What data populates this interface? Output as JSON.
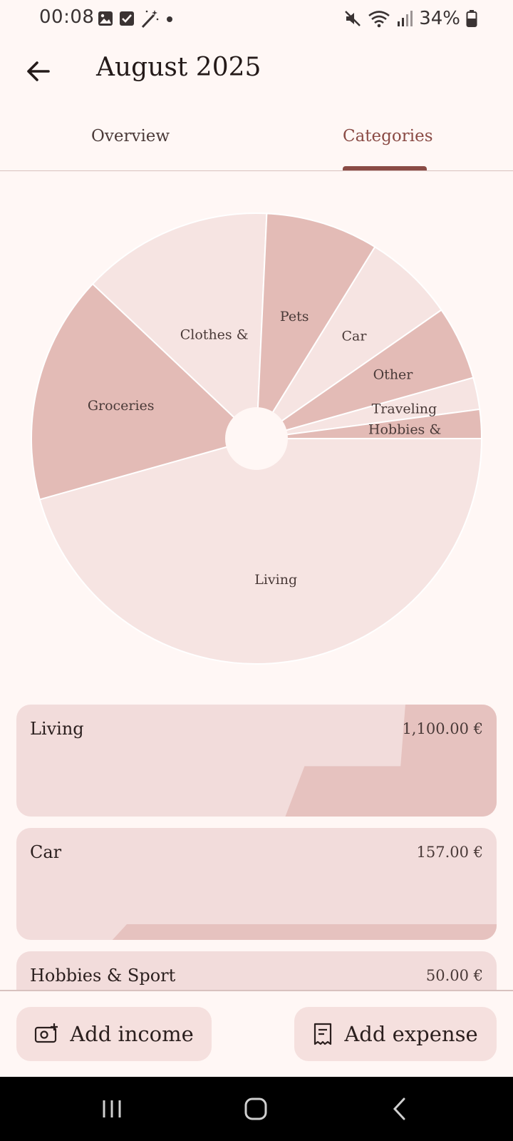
{
  "status_bar": {
    "time": "00:08",
    "battery": "34%",
    "icons_left": [
      "image-icon",
      "check-square-icon",
      "magic-wand-icon",
      "dot-icon"
    ],
    "icons_right": [
      "mute-icon",
      "wifi-icon",
      "signal-icon",
      "battery-icon"
    ]
  },
  "header": {
    "title": "August 2025",
    "back_icon": "arrow-left-icon"
  },
  "tabs": [
    {
      "label": "Overview",
      "selected": false
    },
    {
      "label": "Categories",
      "selected": true
    }
  ],
  "colors": {
    "accent": "#8a4b45",
    "slice_dark": "#e3bbb6",
    "slice_light": "#f6e4e2",
    "card_bg": "#f2dcdb",
    "card_fill": "#e6c2bf"
  },
  "chart_data": {
    "type": "pie",
    "slices": [
      {
        "label": "Living",
        "value": 1100
      },
      {
        "label": "Groceries",
        "value": 395
      },
      {
        "label": "Clothes &",
        "value": 330
      },
      {
        "label": "Pets",
        "value": 195
      },
      {
        "label": "Car",
        "value": 157
      },
      {
        "label": "Other",
        "value": 128
      },
      {
        "label": "Traveling",
        "value": 55
      },
      {
        "label": "Hobbies &",
        "value": 50
      }
    ]
  },
  "categories": [
    {
      "name": "Living",
      "amount": "1,100.00 €",
      "fill_level": 0.72
    },
    {
      "name": "Car",
      "amount": "157.00 €",
      "fill_level": 0.14
    },
    {
      "name": "Hobbies & Sport",
      "amount": "50.00 €",
      "fill_level": 0.05
    }
  ],
  "actions": {
    "add_income": "Add income",
    "add_expense": "Add expense"
  }
}
